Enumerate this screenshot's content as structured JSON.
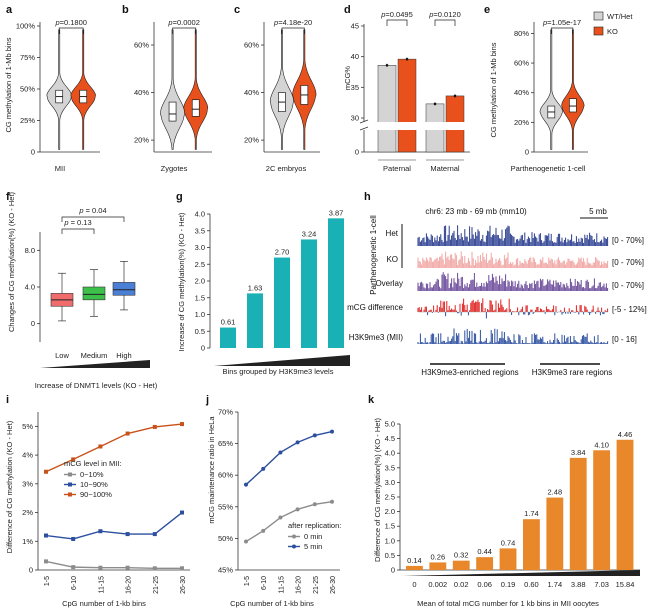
{
  "colors": {
    "wt": "#d4d4d4",
    "ko": "#e8501c",
    "teal": "#19b1b5",
    "orange": "#e8882a",
    "navy": "#2a3d8f",
    "pink": "#f0a6a3",
    "purple": "#6a4a9a",
    "red": "#e02020",
    "blue": "#2c4fa0",
    "gray": "#8c8c8c",
    "darkorange": "#c9521a",
    "boxred": "#f06b6b",
    "boxgreen": "#3cc04a",
    "boxblue": "#4a7fd6"
  },
  "chart_data": [
    {
      "id": "a",
      "type": "violin",
      "panel_letter": "a",
      "ylabel": "CG methylation of 1-Mb bins",
      "yticks": [
        "0",
        "25%",
        "50%",
        "75%",
        "100%"
      ],
      "ylim": [
        0,
        100
      ],
      "xlabel": "MII",
      "pvalue": "p=0.1800",
      "series": [
        {
          "name": "WT/Het",
          "median": 44,
          "q1": 39,
          "q3": 49
        },
        {
          "name": "KO",
          "median": 44,
          "q1": 39,
          "q3": 49
        }
      ]
    },
    {
      "id": "b",
      "type": "violin",
      "panel_letter": "b",
      "yticks": [
        "20%",
        "40%",
        "60%"
      ],
      "ylim": [
        15,
        68
      ],
      "xlabel": "Zygotes",
      "pvalue": "p=0.0002",
      "series": [
        {
          "name": "WT/Het",
          "median": 31,
          "q1": 28,
          "q3": 36
        },
        {
          "name": "KO",
          "median": 33,
          "q1": 30,
          "q3": 37
        }
      ]
    },
    {
      "id": "c",
      "type": "violin",
      "panel_letter": "c",
      "yticks": [
        "20%",
        "40%",
        "60%"
      ],
      "ylim": [
        15,
        68
      ],
      "xlabel": "2C embryos",
      "pvalue": "p=4.18e-20",
      "series": [
        {
          "name": "WT/Het",
          "median": 36,
          "q1": 32,
          "q3": 40
        },
        {
          "name": "KO",
          "median": 39,
          "q1": 35,
          "q3": 43
        }
      ]
    },
    {
      "id": "d",
      "type": "bar",
      "panel_letter": "d",
      "ylabel": "mCG%",
      "yticks": [
        "0",
        "30",
        "35",
        "40",
        "45"
      ],
      "categories": [
        "Paternal",
        "Maternal"
      ],
      "pvalues": [
        "p=0.0495",
        "p=0.0120"
      ],
      "series": [
        {
          "name": "WT/Het",
          "values": [
            38.6,
            32.3
          ]
        },
        {
          "name": "KO",
          "values": [
            39.6,
            33.6
          ]
        }
      ]
    },
    {
      "id": "e",
      "type": "violin",
      "panel_letter": "e",
      "ylabel": "CG methylation of 1-Mb bins",
      "yticks": [
        "0",
        "20%",
        "40%",
        "60%",
        "80%"
      ],
      "ylim": [
        0,
        85
      ],
      "xlabel": "Parthenogenetic 1-cell",
      "pvalue": "p=1.05e-17",
      "series": [
        {
          "name": "WT/Het",
          "median": 27,
          "q1": 23,
          "q3": 31
        },
        {
          "name": "KO",
          "median": 31,
          "q1": 27,
          "q3": 36
        }
      ],
      "legend": [
        "WT/Het",
        "KO"
      ]
    },
    {
      "id": "f",
      "type": "box",
      "panel_letter": "f",
      "ylabel": "Changes of CG methylation(%) (KO - Het)",
      "yticks": [
        "0",
        "4.0",
        "8.0"
      ],
      "ylim": [
        -2,
        10
      ],
      "categories": [
        "Low",
        "Medium",
        "High"
      ],
      "xlabel": "Increase of DNMT1 levels (KO - Het)",
      "pvalues": [
        "p = 0.13",
        "p = 0.04"
      ],
      "boxes": [
        {
          "median": 2.6,
          "q1": 1.9,
          "q3": 3.3,
          "lo": 0.3,
          "hi": 5.5
        },
        {
          "median": 3.2,
          "q1": 2.6,
          "q3": 4.0,
          "lo": 0.8,
          "hi": 5.9
        },
        {
          "median": 3.7,
          "q1": 3.1,
          "q3": 4.5,
          "lo": 1.5,
          "hi": 6.8
        }
      ]
    },
    {
      "id": "g",
      "type": "bar",
      "panel_letter": "g",
      "ylabel": "Increase of CG methylation(%) (KO - Het)",
      "yticks": [
        "0",
        "0.5",
        "1.0",
        "1.5",
        "2.0",
        "2.5",
        "3.0",
        "3.5",
        "4.0"
      ],
      "ylim": [
        0,
        4
      ],
      "values": [
        0.61,
        1.63,
        2.7,
        3.24,
        3.87
      ],
      "labels": [
        "0.61",
        "1.63",
        "2.70",
        "3.24",
        "3.87"
      ],
      "xlabel": "Bins grouped by H3K9me3 levels"
    },
    {
      "id": "i",
      "type": "line",
      "panel_letter": "i",
      "ylabel": "Difference of CG methylation (KO - Het)",
      "yticks": [
        "0",
        "1%",
        "2%",
        "3%",
        "4%",
        "5%"
      ],
      "ylim": [
        0,
        5.5
      ],
      "categories": [
        "1-5",
        "6-10",
        "11-15",
        "16-20",
        "21-25",
        "26-30"
      ],
      "xlabel": "CpG number of 1-kb bins",
      "legend_title": "mCG level in MII:",
      "series": [
        {
          "name": "0~10%",
          "values": [
            0.3,
            0.1,
            0.08,
            0.08,
            0.06,
            0.06
          ]
        },
        {
          "name": "10~90%",
          "values": [
            1.2,
            1.08,
            1.35,
            1.25,
            1.25,
            2.0
          ]
        },
        {
          "name": "90~100%",
          "values": [
            3.42,
            3.85,
            4.3,
            4.75,
            4.98,
            5.08
          ]
        }
      ]
    },
    {
      "id": "j",
      "type": "line",
      "panel_letter": "j",
      "ylabel": "mCG maintenance ratio in HeLa",
      "yticks": [
        "45%",
        "50%",
        "55%",
        "60%",
        "65%",
        "70%"
      ],
      "ylim": [
        45,
        70
      ],
      "categories": [
        "1-5",
        "6-10",
        "11-15",
        "16-20",
        "21-25",
        "26-30"
      ],
      "xlabel": "CpG number of 1-kb bins",
      "legend_title": "after replication:",
      "series": [
        {
          "name": "0 min",
          "values": [
            49.5,
            51.2,
            53.3,
            54.6,
            55.4,
            55.8
          ]
        },
        {
          "name": "5 min",
          "values": [
            58.5,
            61,
            63.6,
            65.2,
            66.3,
            66.9
          ]
        }
      ]
    },
    {
      "id": "k",
      "type": "bar",
      "panel_letter": "k",
      "ylabel": "Difference of CG methylation(%) (KO - Het)",
      "yticks": [
        "0",
        "0.5",
        "1.0",
        "1.5",
        "2.0",
        "2.5",
        "3.0",
        "3.5",
        "4.0",
        "4.5",
        "5.0"
      ],
      "ylim": [
        0,
        5
      ],
      "categories": [
        "0",
        "0.002",
        "0.02",
        "0.06",
        "0.19",
        "0.60",
        "1.74",
        "3.88",
        "7.03",
        "15.84"
      ],
      "values": [
        0.14,
        0.26,
        0.32,
        0.44,
        0.74,
        1.74,
        2.48,
        3.84,
        4.1,
        4.46
      ],
      "labels": [
        "0.14",
        "0.26",
        "0.32",
        "0.44",
        "0.74",
        "1.74",
        "2.48",
        "3.84",
        "4.10",
        "4.46"
      ],
      "xlabel": "Mean of total mCG number for 1 kb bins in MII oocytes"
    }
  ],
  "panel_h": {
    "letter": "h",
    "region": "chr6: 23 mb - 69 mb (mm10)",
    "scale": "5 mb",
    "group_label": "Parthenogenetic 1-cell",
    "tracks": [
      {
        "label": "Het",
        "range": "[0 - 70%]"
      },
      {
        "label": "KO",
        "range": "[0 - 70%]"
      },
      {
        "label": "Overlay",
        "range": "[0 - 70%]"
      },
      {
        "label": "mCG difference",
        "range": "[-5 - 12%]"
      },
      {
        "label": "H3K9me3 (MII)",
        "range": "[0 - 16]"
      }
    ],
    "regions": [
      "H3K9me3-enriched regions",
      "H3K9me3 rare regions"
    ]
  }
}
